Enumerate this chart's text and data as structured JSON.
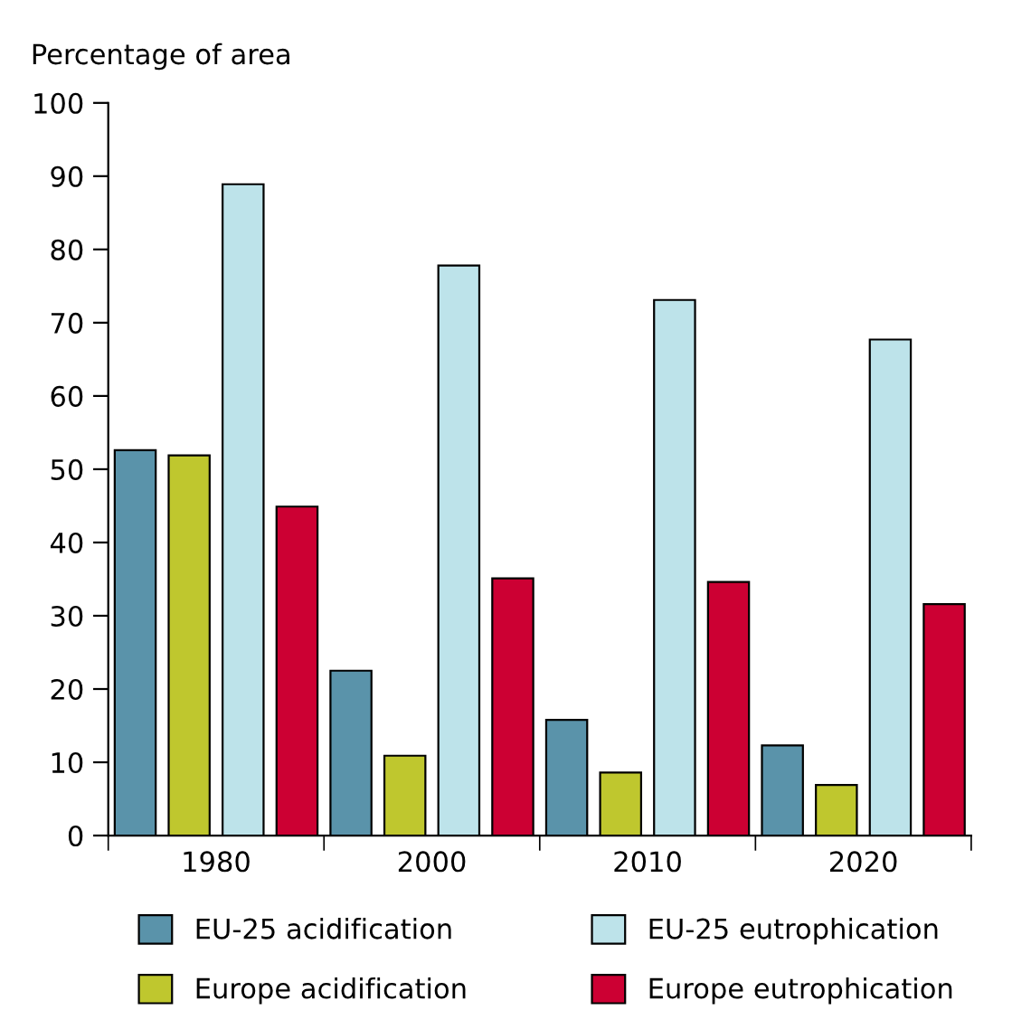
{
  "chart_data": {
    "type": "bar",
    "ylabel": "Percentage of area",
    "categories": [
      "1980",
      "2000",
      "2010",
      "2020"
    ],
    "series": [
      {
        "name": "EU-25 acidification",
        "color": "#5a93aa",
        "values": [
          52.6,
          22.5,
          15.8,
          12.3
        ]
      },
      {
        "name": "Europe acidification",
        "color": "#bfc72e",
        "values": [
          51.9,
          10.9,
          8.6,
          6.9
        ]
      },
      {
        "name": "EU-25 eutrophication",
        "color": "#bde3ea",
        "values": [
          88.9,
          77.8,
          73.1,
          67.7
        ]
      },
      {
        "name": "Europe eutrophication",
        "color": "#cc0033",
        "values": [
          44.9,
          35.1,
          34.6,
          31.6
        ]
      }
    ],
    "ylim": [
      0,
      100
    ],
    "yticks": [
      0,
      10,
      20,
      30,
      40,
      50,
      60,
      70,
      80,
      90,
      100
    ],
    "grid": false,
    "legend": "bottom"
  }
}
